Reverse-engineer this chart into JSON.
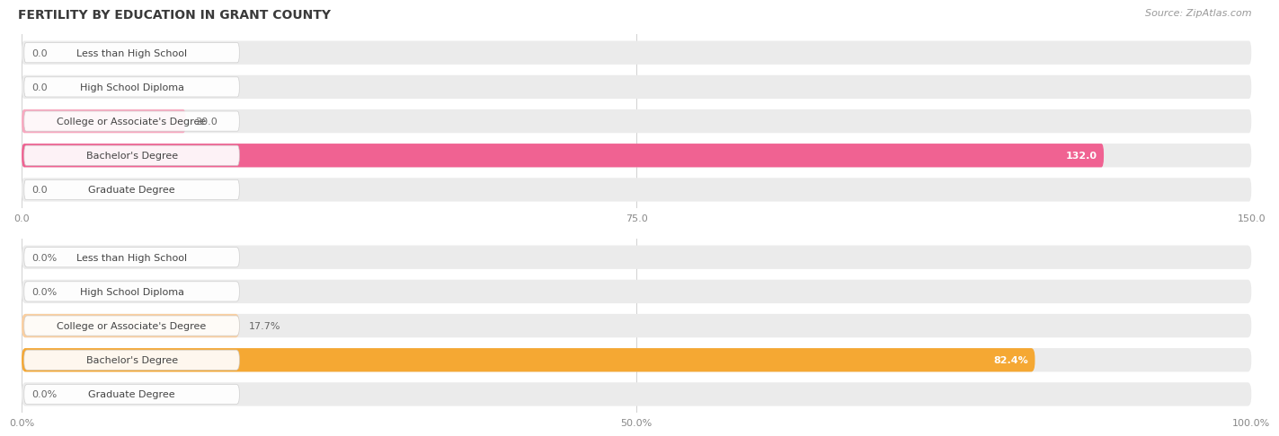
{
  "title": "FERTILITY BY EDUCATION IN GRANT COUNTY",
  "source": "Source: ZipAtlas.com",
  "top_chart": {
    "categories": [
      "Less than High School",
      "High School Diploma",
      "College or Associate's Degree",
      "Bachelor's Degree",
      "Graduate Degree"
    ],
    "values": [
      0.0,
      0.0,
      20.0,
      132.0,
      0.0
    ],
    "xlim": [
      0,
      150
    ],
    "xticks": [
      0.0,
      75.0,
      150.0
    ],
    "bar_color_normal": "#F9A8C0",
    "bar_color_highlight": "#F06292",
    "bar_bg_color": "#EBEBEB",
    "label_color_normal": "#555555",
    "label_color_highlight": "#ffffff"
  },
  "bottom_chart": {
    "categories": [
      "Less than High School",
      "High School Diploma",
      "College or Associate's Degree",
      "Bachelor's Degree",
      "Graduate Degree"
    ],
    "values": [
      0.0,
      0.0,
      17.7,
      82.4,
      0.0
    ],
    "xlim": [
      0,
      100
    ],
    "xticks": [
      0.0,
      50.0,
      100.0
    ],
    "bar_color_normal": "#FBCFA0",
    "bar_color_highlight": "#F5A833",
    "bar_bg_color": "#EBEBEB",
    "label_color_normal": "#555555",
    "label_color_highlight": "#ffffff"
  },
  "background_color": "#ffffff",
  "title_fontsize": 10,
  "source_fontsize": 8,
  "value_fontsize": 8,
  "tick_fontsize": 8,
  "category_fontsize": 8,
  "bar_height": 0.68,
  "bar_gap": 0.32
}
